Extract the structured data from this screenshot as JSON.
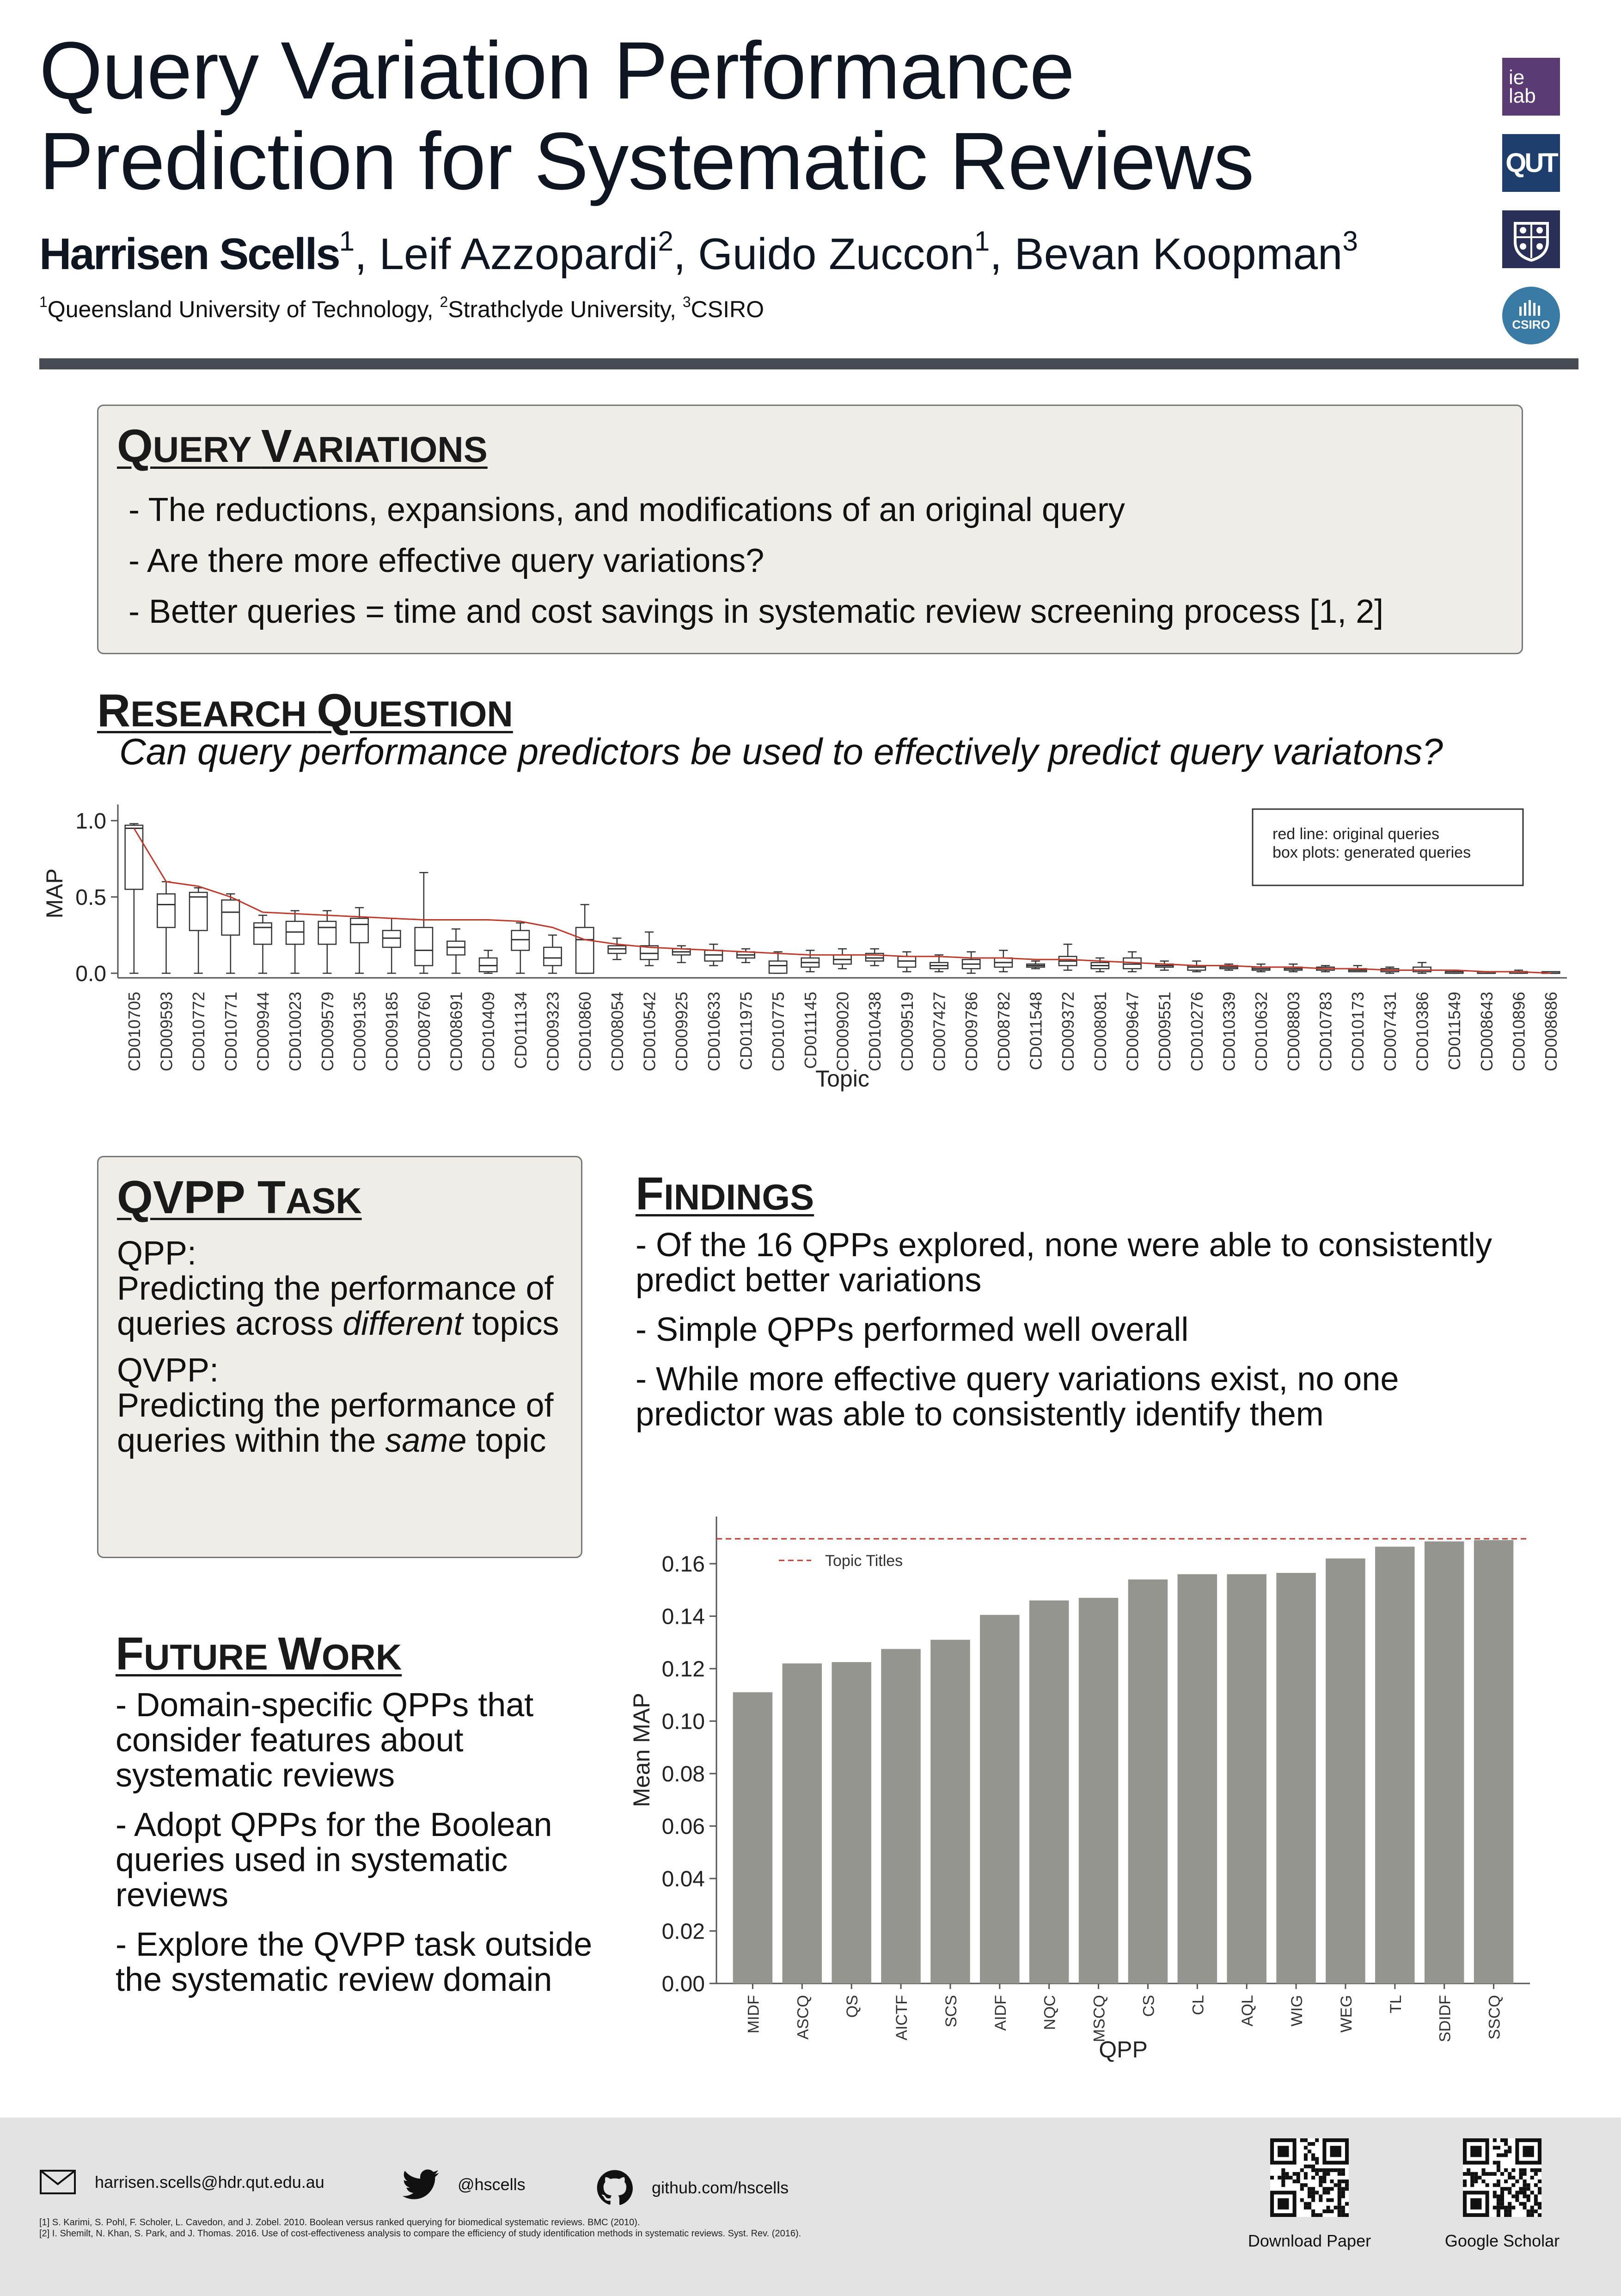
{
  "header": {
    "title_lines": [
      "Query Variation Performance",
      "Prediction for Systematic Reviews"
    ],
    "authors": [
      {
        "name": "Harrisen Scells",
        "sup": "1"
      },
      {
        "name": ", Leif Azzopardi",
        "sup": "2"
      },
      {
        "name": ", Guido Zuccon",
        "sup": "1"
      },
      {
        "name": ", Bevan Koopman",
        "sup": "3"
      }
    ],
    "affiliations": [
      {
        "sup": "1",
        "name": "Queensland University of Technology, "
      },
      {
        "sup": "2",
        "name": "Strathclyde University, "
      },
      {
        "sup": "3",
        "name": "CSIRO"
      }
    ],
    "logos": {
      "ielab_line1": "ie",
      "ielab_line2": "lab",
      "qut": "QUT",
      "csiro": "CSIRO"
    }
  },
  "query_variations": {
    "heading_first": "Q",
    "heading_rest": "UERY ",
    "heading_first2": "V",
    "heading_rest2": "ARIATIONS",
    "items": [
      "- The reductions, expansions, and modifications of an original query",
      "- Are there more effective query variations?",
      "- Better queries = time and cost savings in systematic review screening process [1, 2]"
    ]
  },
  "research_question": {
    "heading_first": "R",
    "heading_rest": "ESEARCH ",
    "heading_first2": "Q",
    "heading_rest2": "UESTION",
    "text": "Can query performance predictors be used to effectively predict query variatons?"
  },
  "qvpp_task": {
    "heading_first": "QVPP T",
    "heading_rest": "ASK",
    "qpp_label": "QPP:",
    "qpp_text_before": "Predicting the performance of queries across ",
    "qpp_text_em": "different",
    "qpp_text_after": " topics",
    "qvpp_label": "QVPP:",
    "qvpp_text_before": "Predicting the performance of queries within the ",
    "qvpp_text_em": "same",
    "qvpp_text_after": " topic"
  },
  "findings": {
    "heading_first": "F",
    "heading_rest": "INDINGS",
    "items": [
      " - Of the 16 QPPs explored, none were able to consistently predict better variations",
      " - Simple QPPs performed well overall",
      " - While more effective query variations exist, no one predictor was able to consistently identify them"
    ]
  },
  "future_work": {
    "heading_first": "F",
    "heading_rest": "UTURE ",
    "heading_first2": "W",
    "heading_rest2": "ORK",
    "items": [
      "- Domain-specific QPPs that consider features about systematic reviews",
      "- Adopt QPPs for the Boolean queries used in systematic reviews",
      "- Explore the QVPP task outside the systematic review domain"
    ]
  },
  "chart_data": [
    {
      "type": "box",
      "xlabel": "Topic",
      "ylabel": "MAP",
      "ylim": [
        0,
        1.0
      ],
      "yticks": [
        "0.0",
        "0.5",
        "1.0"
      ],
      "legend_lines": [
        "red line: original queries",
        "box plots: generated queries"
      ],
      "legend_position": "top-right",
      "line_color": "#c0392b",
      "categories": [
        "CD010705",
        "CD009593",
        "CD010772",
        "CD010771",
        "CD009944",
        "CD010023",
        "CD009579",
        "CD009135",
        "CD009185",
        "CD008760",
        "CD008691",
        "CD010409",
        "CD011134",
        "CD009323",
        "CD010860",
        "CD008054",
        "CD010542",
        "CD009925",
        "CD010633",
        "CD011975",
        "CD010775",
        "CD011145",
        "CD009020",
        "CD010438",
        "CD009519",
        "CD007427",
        "CD009786",
        "CD008782",
        "CD011548",
        "CD009372",
        "CD008081",
        "CD009647",
        "CD009551",
        "CD010276",
        "CD010339",
        "CD010632",
        "CD008803",
        "CD010783",
        "CD010173",
        "CD007431",
        "CD010386",
        "CD011549",
        "CD008643",
        "CD010896",
        "CD008686"
      ],
      "original": [
        0.95,
        0.6,
        0.57,
        0.5,
        0.4,
        0.39,
        0.38,
        0.37,
        0.36,
        0.35,
        0.35,
        0.35,
        0.34,
        0.3,
        0.22,
        0.19,
        0.17,
        0.16,
        0.15,
        0.14,
        0.13,
        0.12,
        0.12,
        0.12,
        0.11,
        0.11,
        0.1,
        0.1,
        0.09,
        0.09,
        0.08,
        0.07,
        0.06,
        0.05,
        0.05,
        0.04,
        0.04,
        0.03,
        0.03,
        0.02,
        0.02,
        0.02,
        0.01,
        0.01,
        0.0
      ],
      "boxes": [
        {
          "min": 0.0,
          "q1": 0.55,
          "median": 0.95,
          "q3": 0.97,
          "max": 0.98
        },
        {
          "min": 0.0,
          "q1": 0.3,
          "median": 0.45,
          "q3": 0.52,
          "max": 0.6
        },
        {
          "min": 0.0,
          "q1": 0.28,
          "median": 0.5,
          "q3": 0.53,
          "max": 0.56
        },
        {
          "min": 0.0,
          "q1": 0.25,
          "median": 0.4,
          "q3": 0.48,
          "max": 0.52
        },
        {
          "min": 0.0,
          "q1": 0.19,
          "median": 0.3,
          "q3": 0.33,
          "max": 0.38
        },
        {
          "min": 0.0,
          "q1": 0.19,
          "median": 0.27,
          "q3": 0.34,
          "max": 0.41
        },
        {
          "min": 0.0,
          "q1": 0.19,
          "median": 0.3,
          "q3": 0.34,
          "max": 0.41
        },
        {
          "min": 0.0,
          "q1": 0.2,
          "median": 0.32,
          "q3": 0.36,
          "max": 0.43
        },
        {
          "min": 0.0,
          "q1": 0.17,
          "median": 0.23,
          "q3": 0.28,
          "max": 0.36
        },
        {
          "min": 0.0,
          "q1": 0.05,
          "median": 0.15,
          "q3": 0.3,
          "max": 0.66
        },
        {
          "min": 0.0,
          "q1": 0.12,
          "median": 0.17,
          "q3": 0.21,
          "max": 0.29
        },
        {
          "min": 0.0,
          "q1": 0.01,
          "median": 0.05,
          "q3": 0.1,
          "max": 0.15
        },
        {
          "min": 0.0,
          "q1": 0.15,
          "median": 0.22,
          "q3": 0.28,
          "max": 0.33
        },
        {
          "min": 0.0,
          "q1": 0.05,
          "median": 0.1,
          "q3": 0.17,
          "max": 0.25
        },
        {
          "min": 0.0,
          "q1": 0.0,
          "median": 0.22,
          "q3": 0.3,
          "max": 0.45
        },
        {
          "min": 0.09,
          "q1": 0.13,
          "median": 0.16,
          "q3": 0.18,
          "max": 0.23
        },
        {
          "min": 0.05,
          "q1": 0.09,
          "median": 0.13,
          "q3": 0.18,
          "max": 0.27
        },
        {
          "min": 0.07,
          "q1": 0.12,
          "median": 0.14,
          "q3": 0.16,
          "max": 0.18
        },
        {
          "min": 0.05,
          "q1": 0.08,
          "median": 0.12,
          "q3": 0.15,
          "max": 0.19
        },
        {
          "min": 0.07,
          "q1": 0.1,
          "median": 0.12,
          "q3": 0.14,
          "max": 0.16
        },
        {
          "min": 0.0,
          "q1": 0.0,
          "median": 0.05,
          "q3": 0.08,
          "max": 0.14
        },
        {
          "min": 0.01,
          "q1": 0.04,
          "median": 0.07,
          "q3": 0.1,
          "max": 0.15
        },
        {
          "min": 0.03,
          "q1": 0.06,
          "median": 0.09,
          "q3": 0.12,
          "max": 0.16
        },
        {
          "min": 0.05,
          "q1": 0.08,
          "median": 0.1,
          "q3": 0.13,
          "max": 0.16
        },
        {
          "min": 0.01,
          "q1": 0.04,
          "median": 0.08,
          "q3": 0.11,
          "max": 0.14
        },
        {
          "min": 0.01,
          "q1": 0.03,
          "median": 0.05,
          "q3": 0.07,
          "max": 0.12
        },
        {
          "min": 0.0,
          "q1": 0.03,
          "median": 0.06,
          "q3": 0.09,
          "max": 0.14
        },
        {
          "min": 0.01,
          "q1": 0.04,
          "median": 0.07,
          "q3": 0.1,
          "max": 0.15
        },
        {
          "min": 0.03,
          "q1": 0.04,
          "median": 0.05,
          "q3": 0.06,
          "max": 0.08
        },
        {
          "min": 0.02,
          "q1": 0.05,
          "median": 0.08,
          "q3": 0.11,
          "max": 0.19
        },
        {
          "min": 0.01,
          "q1": 0.03,
          "median": 0.05,
          "q3": 0.07,
          "max": 0.1
        },
        {
          "min": 0.01,
          "q1": 0.03,
          "median": 0.06,
          "q3": 0.1,
          "max": 0.14
        },
        {
          "min": 0.02,
          "q1": 0.04,
          "median": 0.05,
          "q3": 0.06,
          "max": 0.08
        },
        {
          "min": 0.01,
          "q1": 0.02,
          "median": 0.04,
          "q3": 0.05,
          "max": 0.08
        },
        {
          "min": 0.02,
          "q1": 0.03,
          "median": 0.04,
          "q3": 0.05,
          "max": 0.06
        },
        {
          "min": 0.01,
          "q1": 0.02,
          "median": 0.03,
          "q3": 0.04,
          "max": 0.06
        },
        {
          "min": 0.01,
          "q1": 0.02,
          "median": 0.03,
          "q3": 0.04,
          "max": 0.06
        },
        {
          "min": 0.01,
          "q1": 0.02,
          "median": 0.03,
          "q3": 0.04,
          "max": 0.05
        },
        {
          "min": 0.01,
          "q1": 0.01,
          "median": 0.02,
          "q3": 0.03,
          "max": 0.05
        },
        {
          "min": 0.0,
          "q1": 0.01,
          "median": 0.02,
          "q3": 0.03,
          "max": 0.04
        },
        {
          "min": 0.0,
          "q1": 0.01,
          "median": 0.02,
          "q3": 0.04,
          "max": 0.07
        },
        {
          "min": 0.0,
          "q1": 0.0,
          "median": 0.01,
          "q3": 0.01,
          "max": 0.02
        },
        {
          "min": 0.0,
          "q1": 0.0,
          "median": 0.0,
          "q3": 0.01,
          "max": 0.01
        },
        {
          "min": 0.0,
          "q1": 0.0,
          "median": 0.01,
          "q3": 0.01,
          "max": 0.02
        },
        {
          "min": 0.0,
          "q1": 0.0,
          "median": 0.0,
          "q3": 0.01,
          "max": 0.01
        }
      ]
    },
    {
      "type": "bar",
      "xlabel": "QPP",
      "ylabel": "Mean MAP",
      "ylim": [
        0,
        0.178
      ],
      "yticks": [
        "0.00",
        "0.02",
        "0.04",
        "0.06",
        "0.08",
        "0.10",
        "0.12",
        "0.14",
        "0.16"
      ],
      "categories": [
        "MIDF",
        "ASCQ",
        "QS",
        "AICTF",
        "SCS",
        "AIDF",
        "NQC",
        "MSCQ",
        "CS",
        "CL",
        "AQL",
        "WIG",
        "WEG",
        "TL",
        "SDIDF",
        "SSCQ"
      ],
      "values": [
        0.111,
        0.122,
        0.1225,
        0.1275,
        0.131,
        0.1405,
        0.146,
        0.147,
        0.154,
        0.156,
        0.156,
        0.1565,
        0.162,
        0.1665,
        0.1685,
        0.169
      ],
      "reference_line": {
        "label": "Topic Titles",
        "value": 0.1695,
        "color": "#c0392b"
      },
      "bar_color": "#95958f",
      "legend_position": "top-left"
    }
  ],
  "footer": {
    "email": "harrisen.scells@hdr.qut.edu.au",
    "twitter": "@hscells",
    "github": "github.com/hscells",
    "references": [
      "[1] S. Karimi, S. Pohl, F. Scholer, L. Cavedon, and J. Zobel. 2010. Boolean versus ranked querying for biomedical systematic reviews. BMC (2010).",
      "[2] I. Shemilt, N. Khan, S. Park, and J. Thomas. 2016. Use of cost-effectiveness analysis to compare the efficiency of study identification methods in systematic reviews. Syst. Rev. (2016)."
    ],
    "qr_paper_label": "Download Paper",
    "qr_scholar_label": "Google Scholar"
  }
}
